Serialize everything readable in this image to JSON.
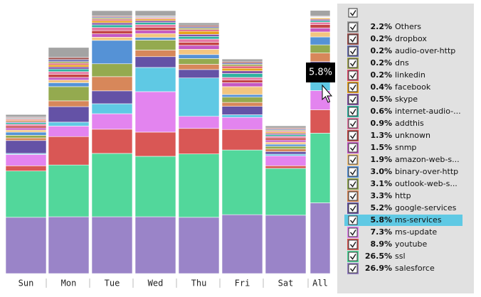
{
  "chart_data": {
    "type": "stacked-bar",
    "categories": [
      "Sun",
      "Mon",
      "Tue",
      "Wed",
      "Thu",
      "Fri",
      "Sat",
      "All"
    ],
    "ylim": [
      0,
      100
    ],
    "highlight": "ms-services",
    "tooltip": {
      "series": 16,
      "category": 7
    },
    "series": [
      {
        "name": "Others",
        "color": "#a3a3a3",
        "values": [
          1.0,
          3.8,
          2.0,
          2.0,
          1.0,
          1.0,
          0.8,
          2.2
        ],
        "value_labels": [
          null,
          null,
          null,
          null,
          null,
          null,
          null,
          "2.2%"
        ]
      },
      {
        "name": "dropbox",
        "color": "#a0524f",
        "values": [
          0.3,
          0.8,
          0.4,
          0.2,
          0.5,
          0.5,
          0.4,
          0.2
        ],
        "value_labels": [
          null,
          null,
          null,
          null,
          null,
          null,
          null,
          "0.2%"
        ]
      },
      {
        "name": "audio-over-http",
        "color": "#6b72b3",
        "values": [
          0.3,
          0.8,
          0.4,
          0.3,
          0.5,
          0.5,
          0.4,
          0.2
        ],
        "value_labels": [
          null,
          null,
          null,
          null,
          null,
          null,
          null,
          "0.2%"
        ]
      },
      {
        "name": "dns",
        "color": "#a5a752",
        "values": [
          0.3,
          0.6,
          0.5,
          0.3,
          0.6,
          0.7,
          0.4,
          0.2
        ],
        "value_labels": [
          null,
          null,
          null,
          null,
          null,
          null,
          null,
          "0.2%"
        ]
      },
      {
        "name": "linkedin",
        "color": "#e0506f",
        "values": [
          0.4,
          0.6,
          0.5,
          0.4,
          0.6,
          0.8,
          0.4,
          0.2
        ],
        "value_labels": [
          null,
          null,
          null,
          null,
          null,
          null,
          null,
          "0.2%"
        ]
      },
      {
        "name": "facebook",
        "color": "#e8a21c",
        "values": [
          0.4,
          0.8,
          0.8,
          0.6,
          1.2,
          1.0,
          0.5,
          0.4
        ],
        "value_labels": [
          null,
          null,
          null,
          null,
          null,
          null,
          null,
          "0.4%"
        ]
      },
      {
        "name": "skype",
        "color": "#8452a6",
        "values": [
          0.4,
          0.8,
          0.8,
          0.7,
          0.8,
          1.0,
          0.5,
          0.5
        ],
        "value_labels": [
          null,
          null,
          null,
          null,
          null,
          null,
          null,
          "0.5%"
        ]
      },
      {
        "name": "internet-audio-...",
        "color": "#2fb3a0",
        "values": [
          0.6,
          1.0,
          1.0,
          0.8,
          1.0,
          1.5,
          0.6,
          0.6
        ],
        "value_labels": [
          null,
          null,
          null,
          null,
          null,
          null,
          null,
          "0.6%"
        ]
      },
      {
        "name": "addthis",
        "color": "#e678a3",
        "values": [
          0.6,
          1.0,
          1.2,
          1.0,
          1.2,
          1.0,
          0.6,
          0.9
        ],
        "value_labels": [
          null,
          null,
          null,
          null,
          null,
          null,
          null,
          "0.9%"
        ]
      },
      {
        "name": "unknown",
        "color": "#c44545",
        "values": [
          0.8,
          1.2,
          1.2,
          1.2,
          1.2,
          1.0,
          0.8,
          1.3
        ],
        "value_labels": [
          null,
          null,
          null,
          null,
          null,
          null,
          null,
          "1.3%"
        ]
      },
      {
        "name": "snmp",
        "color": "#c558c2",
        "values": [
          0.8,
          1.0,
          1.3,
          1.2,
          1.5,
          1.5,
          0.8,
          1.5
        ],
        "value_labels": [
          null,
          null,
          null,
          null,
          null,
          null,
          null,
          "1.5%"
        ]
      },
      {
        "name": "amazon-web-s...",
        "color": "#f3c57f",
        "values": [
          0.8,
          1.0,
          1.2,
          1.5,
          2.0,
          3.0,
          0.8,
          1.9
        ],
        "value_labels": [
          null,
          null,
          null,
          null,
          null,
          null,
          null,
          "1.9%"
        ]
      },
      {
        "name": "binary-over-http",
        "color": "#5592d6",
        "values": [
          1.2,
          1.5,
          8.9,
          1.0,
          1.5,
          1.0,
          0.8,
          3.0
        ],
        "value_labels": [
          null,
          null,
          null,
          null,
          null,
          null,
          null,
          "3.0%"
        ]
      },
      {
        "name": "outlook-web-s...",
        "color": "#94aa4f",
        "values": [
          1.0,
          5.4,
          4.9,
          3.8,
          2.2,
          2.0,
          1.0,
          3.1
        ],
        "value_labels": [
          null,
          null,
          null,
          null,
          null,
          null,
          null,
          "3.1%"
        ]
      },
      {
        "name": "http",
        "color": "#d7875a",
        "values": [
          1.0,
          2.2,
          5.4,
          2.5,
          2.0,
          1.5,
          1.0,
          3.3
        ],
        "value_labels": [
          null,
          null,
          null,
          null,
          null,
          null,
          null,
          "3.3%"
        ]
      },
      {
        "name": "google-services",
        "color": "#6452a6",
        "values": [
          4.9,
          5.9,
          4.9,
          4.1,
          3.2,
          3.2,
          1.0,
          5.2
        ],
        "value_labels": [
          null,
          null,
          null,
          null,
          null,
          null,
          null,
          "5.2%"
        ]
      },
      {
        "name": "ms-services",
        "color": "#5fc9e4",
        "values": [
          0.4,
          1.5,
          3.8,
          9.2,
          14.6,
          1.0,
          0.6,
          5.8
        ],
        "value_labels": [
          null,
          null,
          null,
          null,
          null,
          null,
          null,
          "5.8%"
        ]
      },
      {
        "name": "ms-update",
        "color": "#e384ef",
        "values": [
          4.3,
          4.0,
          5.9,
          15.4,
          4.6,
          4.6,
          3.8,
          7.3
        ],
        "value_labels": [
          null,
          null,
          null,
          null,
          null,
          null,
          null,
          "7.3%"
        ]
      },
      {
        "name": "youtube",
        "color": "#d95755",
        "values": [
          2.0,
          10.8,
          9.2,
          9.2,
          9.7,
          7.8,
          1.0,
          8.9
        ],
        "value_labels": [
          null,
          null,
          null,
          null,
          null,
          null,
          null,
          "8.9%"
        ]
      },
      {
        "name": "ssl",
        "color": "#52d79b",
        "values": [
          17.6,
          19.7,
          24.1,
          23.0,
          24.1,
          24.6,
          17.8,
          26.5
        ],
        "value_labels": [
          null,
          null,
          null,
          null,
          null,
          null,
          null,
          "26.5%"
        ]
      },
      {
        "name": "salesforce",
        "color": "#9a84c8",
        "values": [
          21.4,
          21.6,
          21.6,
          21.6,
          21.4,
          22.4,
          22.2,
          26.9
        ],
        "value_labels": [
          null,
          null,
          null,
          null,
          null,
          null,
          null,
          "26.9%"
        ]
      }
    ]
  }
}
